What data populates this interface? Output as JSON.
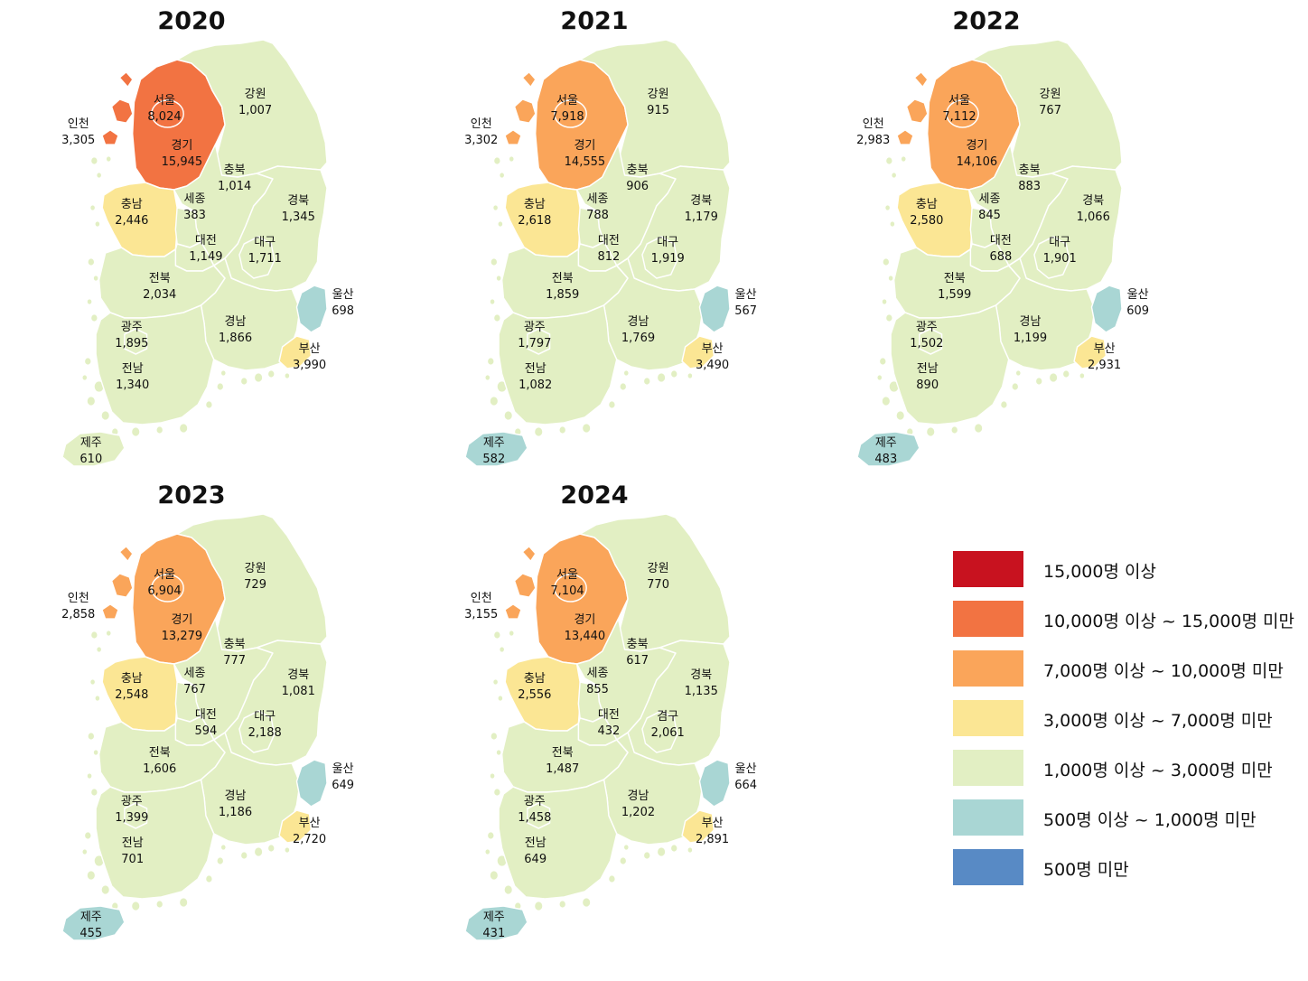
{
  "colors": {
    "c15000_plus": "#c8121f",
    "c10000_15000": "#f27342",
    "c7000_10000": "#faa55a",
    "c3000_7000": "#fbe694",
    "c1000_3000": "#e2efc3",
    "c500_1000": "#a9d6d4",
    "under_500": "#588ac5"
  },
  "legend": [
    {
      "label": "15,000명 이상",
      "color": "#c8121f"
    },
    {
      "label": "10,000명 이상 ~ 15,000명 미만",
      "color": "#f27342"
    },
    {
      "label": "7,000명 이상 ~ 10,000명 미만",
      "color": "#faa55a"
    },
    {
      "label": "3,000명 이상 ~ 7,000명 미만",
      "color": "#fbe694"
    },
    {
      "label": "1,000명 이상 ~ 3,000명 미만",
      "color": "#e2efc3"
    },
    {
      "label": "500명 이상 ~ 1,000명 미만",
      "color": "#a9d6d4"
    },
    {
      "label": "500명 미만",
      "color": "#588ac5"
    }
  ],
  "maps": [
    {
      "year": "2020",
      "regions": {
        "seoul": {
          "name": "서울",
          "value": "8,024",
          "fill": "#f27342"
        },
        "gyeonggi": {
          "name": "경기",
          "value": "15,945",
          "fill": "#f27342"
        },
        "incheon": {
          "name": "인천",
          "value": "3,305",
          "fill": "#f27342"
        },
        "gangwon": {
          "name": "강원",
          "value": "1,007",
          "fill": "#e2efc3"
        },
        "chungbuk": {
          "name": "충북",
          "value": "1,014",
          "fill": "#e2efc3"
        },
        "chungnam": {
          "name": "충남",
          "value": "2,446",
          "fill": "#fbe694"
        },
        "sejong": {
          "name": "세종",
          "value": "383",
          "fill": "#e2efc3"
        },
        "daejeon": {
          "name": "대전",
          "value": "1,149",
          "fill": "#e2efc3"
        },
        "gyeongbuk": {
          "name": "경북",
          "value": "1,345",
          "fill": "#e2efc3"
        },
        "daegu": {
          "name": "대구",
          "value": "1,711",
          "fill": "#e2efc3"
        },
        "jeonbuk": {
          "name": "전북",
          "value": "2,034",
          "fill": "#e2efc3"
        },
        "ulsan": {
          "name": "울산",
          "value": "698",
          "fill": "#a9d6d4"
        },
        "gwangju": {
          "name": "광주",
          "value": "1,895",
          "fill": "#e2efc3"
        },
        "gyeongnam": {
          "name": "경남",
          "value": "1,866",
          "fill": "#e2efc3"
        },
        "busan": {
          "name": "부산",
          "value": "3,990",
          "fill": "#fbe694"
        },
        "jeonnam": {
          "name": "전남",
          "value": "1,340",
          "fill": "#e2efc3"
        },
        "jeju": {
          "name": "제주",
          "value": "610",
          "fill": "#e2efc3"
        }
      }
    },
    {
      "year": "2021",
      "regions": {
        "seoul": {
          "name": "서울",
          "value": "7,918",
          "fill": "#faa55a"
        },
        "gyeonggi": {
          "name": "경기",
          "value": "14,555",
          "fill": "#faa55a"
        },
        "incheon": {
          "name": "인천",
          "value": "3,302",
          "fill": "#faa55a"
        },
        "gangwon": {
          "name": "강원",
          "value": "915",
          "fill": "#e2efc3"
        },
        "chungbuk": {
          "name": "충북",
          "value": "906",
          "fill": "#e2efc3"
        },
        "chungnam": {
          "name": "충남",
          "value": "2,618",
          "fill": "#fbe694"
        },
        "sejong": {
          "name": "세종",
          "value": "788",
          "fill": "#e2efc3"
        },
        "daejeon": {
          "name": "대전",
          "value": "812",
          "fill": "#e2efc3"
        },
        "gyeongbuk": {
          "name": "경북",
          "value": "1,179",
          "fill": "#e2efc3"
        },
        "daegu": {
          "name": "대구",
          "value": "1,919",
          "fill": "#e2efc3"
        },
        "jeonbuk": {
          "name": "전북",
          "value": "1,859",
          "fill": "#e2efc3"
        },
        "ulsan": {
          "name": "울산",
          "value": "567",
          "fill": "#a9d6d4"
        },
        "gwangju": {
          "name": "광주",
          "value": "1,797",
          "fill": "#e2efc3"
        },
        "gyeongnam": {
          "name": "경남",
          "value": "1,769",
          "fill": "#e2efc3"
        },
        "busan": {
          "name": "부산",
          "value": "3,490",
          "fill": "#fbe694"
        },
        "jeonnam": {
          "name": "전남",
          "value": "1,082",
          "fill": "#e2efc3"
        },
        "jeju": {
          "name": "제주",
          "value": "582",
          "fill": "#a9d6d4"
        }
      }
    },
    {
      "year": "2022",
      "regions": {
        "seoul": {
          "name": "서울",
          "value": "7,112",
          "fill": "#faa55a"
        },
        "gyeonggi": {
          "name": "경기",
          "value": "14,106",
          "fill": "#faa55a"
        },
        "incheon": {
          "name": "인천",
          "value": "2,983",
          "fill": "#faa55a"
        },
        "gangwon": {
          "name": "강원",
          "value": "767",
          "fill": "#e2efc3"
        },
        "chungbuk": {
          "name": "충북",
          "value": "883",
          "fill": "#e2efc3"
        },
        "chungnam": {
          "name": "충남",
          "value": "2,580",
          "fill": "#fbe694"
        },
        "sejong": {
          "name": "세종",
          "value": "845",
          "fill": "#e2efc3"
        },
        "daejeon": {
          "name": "대전",
          "value": "688",
          "fill": "#e2efc3"
        },
        "gyeongbuk": {
          "name": "경북",
          "value": "1,066",
          "fill": "#e2efc3"
        },
        "daegu": {
          "name": "대구",
          "value": "1,901",
          "fill": "#e2efc3"
        },
        "jeonbuk": {
          "name": "전북",
          "value": "1,599",
          "fill": "#e2efc3"
        },
        "ulsan": {
          "name": "울산",
          "value": "609",
          "fill": "#a9d6d4"
        },
        "gwangju": {
          "name": "광주",
          "value": "1,502",
          "fill": "#e2efc3"
        },
        "gyeongnam": {
          "name": "경남",
          "value": "1,199",
          "fill": "#e2efc3"
        },
        "busan": {
          "name": "부산",
          "value": "2,931",
          "fill": "#fbe694"
        },
        "jeonnam": {
          "name": "전남",
          "value": "890",
          "fill": "#e2efc3"
        },
        "jeju": {
          "name": "제주",
          "value": "483",
          "fill": "#a9d6d4"
        }
      }
    },
    {
      "year": "2023",
      "regions": {
        "seoul": {
          "name": "서울",
          "value": "6,904",
          "fill": "#faa55a"
        },
        "gyeonggi": {
          "name": "경기",
          "value": "13,279",
          "fill": "#faa55a"
        },
        "incheon": {
          "name": "인천",
          "value": "2,858",
          "fill": "#faa55a"
        },
        "gangwon": {
          "name": "강원",
          "value": "729",
          "fill": "#e2efc3"
        },
        "chungbuk": {
          "name": "충북",
          "value": "777",
          "fill": "#e2efc3"
        },
        "chungnam": {
          "name": "충남",
          "value": "2,548",
          "fill": "#fbe694"
        },
        "sejong": {
          "name": "세종",
          "value": "767",
          "fill": "#e2efc3"
        },
        "daejeon": {
          "name": "대전",
          "value": "594",
          "fill": "#e2efc3"
        },
        "gyeongbuk": {
          "name": "경북",
          "value": "1,081",
          "fill": "#e2efc3"
        },
        "daegu": {
          "name": "대구",
          "value": "2,188",
          "fill": "#e2efc3"
        },
        "jeonbuk": {
          "name": "전북",
          "value": "1,606",
          "fill": "#e2efc3"
        },
        "ulsan": {
          "name": "울산",
          "value": "649",
          "fill": "#a9d6d4"
        },
        "gwangju": {
          "name": "광주",
          "value": "1,399",
          "fill": "#e2efc3"
        },
        "gyeongnam": {
          "name": "경남",
          "value": "1,186",
          "fill": "#e2efc3"
        },
        "busan": {
          "name": "부산",
          "value": "2,720",
          "fill": "#fbe694"
        },
        "jeonnam": {
          "name": "전남",
          "value": "701",
          "fill": "#e2efc3"
        },
        "jeju": {
          "name": "제주",
          "value": "455",
          "fill": "#a9d6d4"
        }
      }
    },
    {
      "year": "2024",
      "regions": {
        "seoul": {
          "name": "서울",
          "value": "7,104",
          "fill": "#faa55a"
        },
        "gyeonggi": {
          "name": "경기",
          "value": "13,440",
          "fill": "#faa55a"
        },
        "incheon": {
          "name": "인천",
          "value": "3,155",
          "fill": "#faa55a"
        },
        "gangwon": {
          "name": "강원",
          "value": "770",
          "fill": "#e2efc3"
        },
        "chungbuk": {
          "name": "충북",
          "value": "617",
          "fill": "#e2efc3"
        },
        "chungnam": {
          "name": "충남",
          "value": "2,556",
          "fill": "#fbe694"
        },
        "sejong": {
          "name": "세종",
          "value": "855",
          "fill": "#e2efc3"
        },
        "daejeon": {
          "name": "대전",
          "value": "432",
          "fill": "#e2efc3"
        },
        "gyeongbuk": {
          "name": "경북",
          "value": "1,135",
          "fill": "#e2efc3"
        },
        "daegu": {
          "name": "겸구",
          "value": "2,061",
          "fill": "#e2efc3"
        },
        "jeonbuk": {
          "name": "전북",
          "value": "1,487",
          "fill": "#e2efc3"
        },
        "ulsan": {
          "name": "울산",
          "value": "664",
          "fill": "#a9d6d4"
        },
        "gwangju": {
          "name": "광주",
          "value": "1,458",
          "fill": "#e2efc3"
        },
        "gyeongnam": {
          "name": "경남",
          "value": "1,202",
          "fill": "#e2efc3"
        },
        "busan": {
          "name": "부산",
          "value": "2,891",
          "fill": "#fbe694"
        },
        "jeonnam": {
          "name": "전남",
          "value": "649",
          "fill": "#e2efc3"
        },
        "jeju": {
          "name": "제주",
          "value": "431",
          "fill": "#a9d6d4"
        }
      }
    }
  ]
}
